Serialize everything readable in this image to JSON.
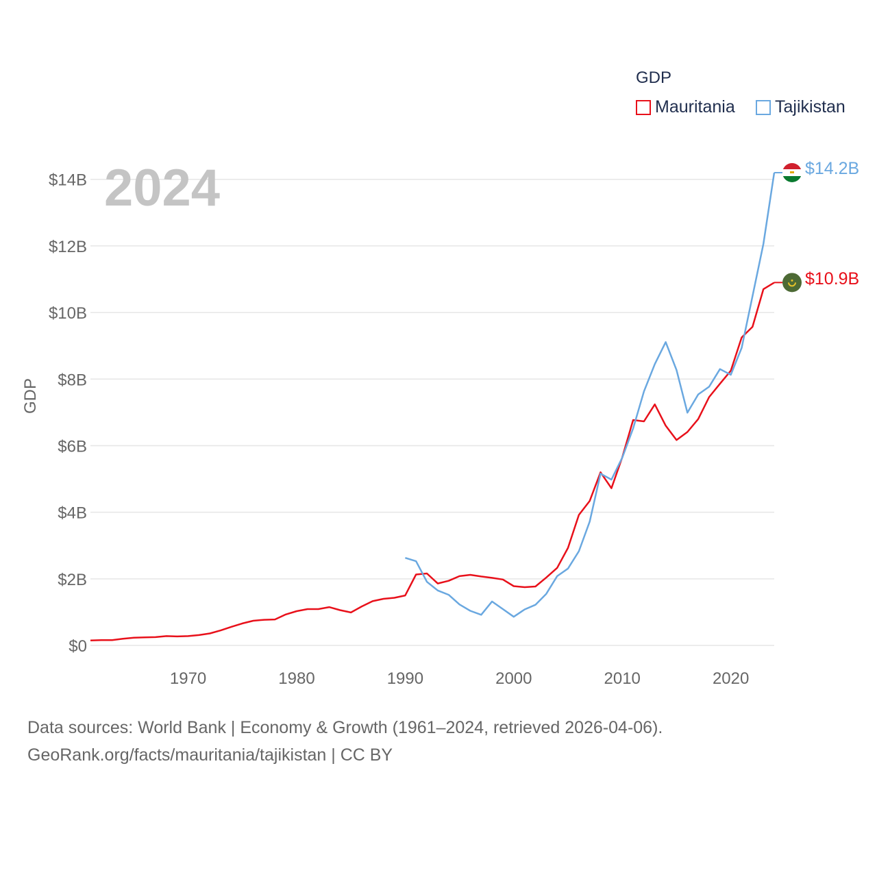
{
  "chart_data": {
    "type": "line",
    "title": "",
    "xlabel": "",
    "ylabel": "GDP",
    "year_overlay": "2024",
    "legend_title": "GDP",
    "xlim": [
      1961,
      2024
    ],
    "ylim": [
      0,
      14.2
    ],
    "x_ticks": [
      1970,
      1980,
      1990,
      2000,
      2010,
      2020
    ],
    "y_ticks": [
      0,
      2,
      4,
      6,
      8,
      10,
      12,
      14
    ],
    "y_tick_labels": [
      "$0",
      "$2B",
      "$4B",
      "$6B",
      "$8B",
      "$10B",
      "$12B",
      "$14B"
    ],
    "series": [
      {
        "name": "Mauritania",
        "color": "#e8101a",
        "end_label": "$10.9B",
        "x": [
          1961,
          1962,
          1963,
          1964,
          1965,
          1966,
          1967,
          1968,
          1969,
          1970,
          1971,
          1972,
          1973,
          1974,
          1975,
          1976,
          1977,
          1978,
          1979,
          1980,
          1981,
          1982,
          1983,
          1984,
          1985,
          1986,
          1987,
          1988,
          1989,
          1990,
          1991,
          1992,
          1993,
          1994,
          1995,
          1996,
          1997,
          1998,
          1999,
          2000,
          2001,
          2002,
          2003,
          2004,
          2005,
          2006,
          2007,
          2008,
          2009,
          2010,
          2011,
          2012,
          2013,
          2014,
          2015,
          2016,
          2017,
          2018,
          2019,
          2020,
          2021,
          2022,
          2023,
          2024
        ],
        "values": [
          0.15,
          0.16,
          0.16,
          0.2,
          0.23,
          0.24,
          0.25,
          0.28,
          0.27,
          0.28,
          0.31,
          0.36,
          0.45,
          0.56,
          0.66,
          0.74,
          0.77,
          0.78,
          0.93,
          1.03,
          1.09,
          1.09,
          1.15,
          1.06,
          0.99,
          1.17,
          1.33,
          1.4,
          1.43,
          1.5,
          2.13,
          2.16,
          1.86,
          1.94,
          2.08,
          2.12,
          2.07,
          2.03,
          1.98,
          1.78,
          1.75,
          1.77,
          2.04,
          2.33,
          2.93,
          3.92,
          4.34,
          5.2,
          4.72,
          5.65,
          6.77,
          6.73,
          7.24,
          6.6,
          6.17,
          6.41,
          6.8,
          7.46,
          7.86,
          8.25,
          9.25,
          9.57,
          10.7,
          10.9
        ]
      },
      {
        "name": "Tajikistan",
        "color": "#6aa8e0",
        "end_label": "$14.2B",
        "x": [
          1990,
          1991,
          1992,
          1993,
          1994,
          1995,
          1996,
          1997,
          1998,
          1999,
          2000,
          2001,
          2002,
          2003,
          2004,
          2005,
          2006,
          2007,
          2008,
          2009,
          2010,
          2011,
          2012,
          2013,
          2014,
          2015,
          2016,
          2017,
          2018,
          2019,
          2020,
          2021,
          2022,
          2023,
          2024
        ],
        "values": [
          2.63,
          2.53,
          1.91,
          1.65,
          1.52,
          1.23,
          1.04,
          0.92,
          1.32,
          1.09,
          0.86,
          1.08,
          1.22,
          1.55,
          2.08,
          2.31,
          2.83,
          3.72,
          5.16,
          4.98,
          5.64,
          6.52,
          7.63,
          8.45,
          9.11,
          8.27,
          6.99,
          7.54,
          7.77,
          8.3,
          8.13,
          8.94,
          10.49,
          12.06,
          14.2
        ]
      }
    ]
  },
  "footer": {
    "line1": "Data sources: World Bank | Economy & Growth (1961–2024, retrieved 2026-04-06).",
    "line2": "GeoRank.org/facts/mauritania/tajikistan | CC BY"
  }
}
